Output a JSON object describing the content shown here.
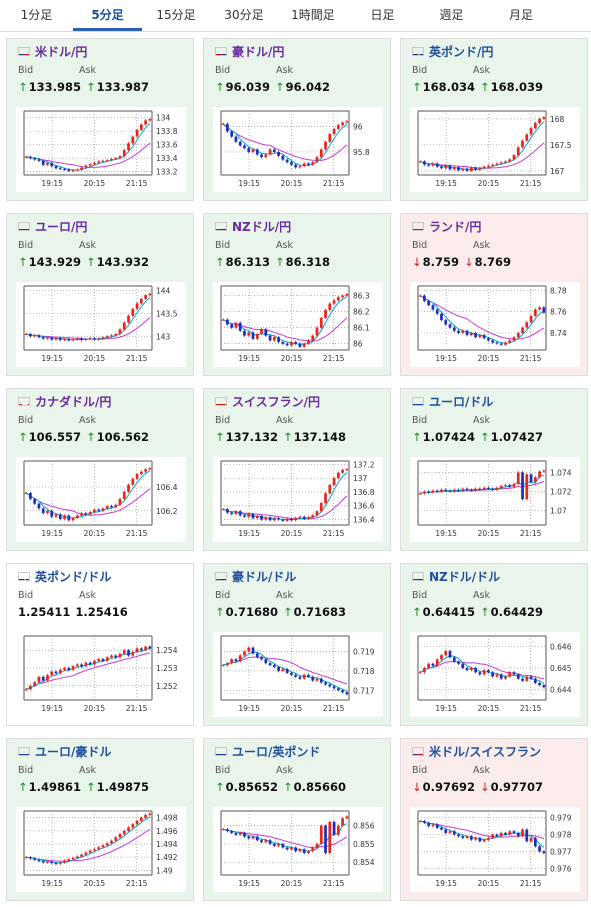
{
  "tabs": [
    {
      "label": "1分足",
      "active": false
    },
    {
      "label": "5分足",
      "active": true
    },
    {
      "label": "15分足",
      "active": false
    },
    {
      "label": "30分足",
      "active": false
    },
    {
      "label": "1時間足",
      "active": false
    },
    {
      "label": "日足",
      "active": false
    },
    {
      "label": "週足",
      "active": false
    },
    {
      "label": "月足",
      "active": false
    }
  ],
  "colors": {
    "up_candle": "#e8261d",
    "down_candle": "#1d2fb8",
    "ma_short": "#00a9c9",
    "ma_long": "#c43ad6",
    "grid": "#999999",
    "up_arrow": "#1f8a2a",
    "down_arrow": "#d0201d"
  },
  "labels": {
    "bid": "Bid",
    "ask": "Ask"
  },
  "cards": [
    {
      "pair": "米ドル/円",
      "flag": "us",
      "trend": "up",
      "bid": "133.985",
      "ask": "133.987",
      "arrows": [
        "up",
        "up"
      ],
      "chart_data": {
        "type": "candlestick",
        "x_ticks": [
          "19:15",
          "20:15",
          "21:15"
        ],
        "y_ticks": [
          "134",
          "133.8",
          "133.6",
          "133.4",
          "133.2"
        ],
        "ylim": [
          133.15,
          134.1
        ],
        "closes": [
          133.42,
          133.4,
          133.38,
          133.36,
          133.3,
          133.33,
          133.28,
          133.25,
          133.24,
          133.23,
          133.21,
          133.22,
          133.23,
          133.26,
          133.29,
          133.31,
          133.33,
          133.35,
          133.36,
          133.37,
          133.39,
          133.4,
          133.43,
          133.52,
          133.62,
          133.72,
          133.82,
          133.9,
          133.96,
          133.98
        ]
      }
    },
    {
      "pair": "豪ドル/円",
      "flag": "au",
      "trend": "up",
      "bid": "96.039",
      "ask": "96.042",
      "arrows": [
        "up",
        "up"
      ],
      "chart_data": {
        "type": "candlestick",
        "x_ticks": [
          "19:15",
          "20:15",
          "21:15"
        ],
        "y_ticks": [
          "96",
          "95.8"
        ],
        "ylim": [
          95.62,
          96.12
        ],
        "closes": [
          96.02,
          95.96,
          95.92,
          95.88,
          95.85,
          95.83,
          95.8,
          95.82,
          95.78,
          95.76,
          95.78,
          95.82,
          95.8,
          95.77,
          95.74,
          95.72,
          95.7,
          95.68,
          95.69,
          95.71,
          95.7,
          95.72,
          95.76,
          95.82,
          95.88,
          95.94,
          95.98,
          96.01,
          96.03,
          96.04
        ]
      }
    },
    {
      "pair": "英ポンド/円",
      "flag": "gb",
      "trend": "up",
      "bid": "168.034",
      "ask": "168.039",
      "arrows": [
        "up",
        "up"
      ],
      "chart_data": {
        "type": "candlestick",
        "x_ticks": [
          "19:15",
          "20:15",
          "21:15"
        ],
        "y_ticks": [
          "168",
          "167.5",
          "167"
        ],
        "ylim": [
          166.92,
          168.15
        ],
        "closes": [
          167.18,
          167.12,
          167.1,
          167.14,
          167.08,
          167.05,
          167.1,
          167.03,
          167.07,
          167.01,
          167.04,
          167.0,
          167.06,
          167.02,
          167.05,
          167.08,
          167.1,
          167.12,
          167.14,
          167.16,
          167.18,
          167.22,
          167.3,
          167.45,
          167.58,
          167.7,
          167.82,
          167.92,
          168.0,
          168.03
        ]
      }
    },
    {
      "pair": "ユーロ/円",
      "flag": "eu",
      "trend": "up",
      "bid": "143.929",
      "ask": "143.932",
      "arrows": [
        "up",
        "up"
      ],
      "chart_data": {
        "type": "candlestick",
        "x_ticks": [
          "19:15",
          "20:15",
          "21:15"
        ],
        "y_ticks": [
          "144",
          "143.5",
          "143"
        ],
        "ylim": [
          142.7,
          144.1
        ],
        "closes": [
          143.05,
          143.0,
          143.02,
          142.98,
          142.95,
          142.97,
          142.93,
          142.96,
          142.92,
          142.94,
          142.91,
          142.93,
          142.95,
          142.92,
          142.94,
          142.96,
          142.93,
          142.95,
          142.98,
          143.0,
          143.02,
          143.05,
          143.15,
          143.3,
          143.45,
          143.6,
          143.72,
          143.82,
          143.9,
          143.93
        ]
      }
    },
    {
      "pair": "NZドル/円",
      "flag": "nz",
      "trend": "up",
      "bid": "86.313",
      "ask": "86.318",
      "arrows": [
        "up",
        "up"
      ],
      "chart_data": {
        "type": "candlestick",
        "x_ticks": [
          "19:15",
          "20:15",
          "21:15"
        ],
        "y_ticks": [
          "86.3",
          "86.2",
          "86.1",
          "86"
        ],
        "ylim": [
          85.96,
          86.36
        ],
        "closes": [
          86.15,
          86.12,
          86.1,
          86.13,
          86.08,
          86.05,
          86.07,
          86.03,
          86.06,
          86.09,
          86.05,
          86.02,
          86.04,
          86.01,
          86.0,
          85.99,
          86.01,
          86.0,
          85.98,
          86.0,
          86.02,
          86.05,
          86.1,
          86.16,
          86.21,
          86.25,
          86.27,
          86.29,
          86.3,
          86.31
        ]
      }
    },
    {
      "pair": "ランド/円",
      "flag": "za",
      "trend": "down",
      "bid": "8.759",
      "ask": "8.769",
      "arrows": [
        "down",
        "down"
      ],
      "chart_data": {
        "type": "candlestick",
        "x_ticks": [
          "19:15",
          "20:15",
          "21:15"
        ],
        "y_ticks": [
          "8.78",
          "8.76",
          "8.74"
        ],
        "ylim": [
          8.724,
          8.784
        ],
        "closes": [
          8.775,
          8.77,
          8.766,
          8.762,
          8.758,
          8.752,
          8.748,
          8.745,
          8.742,
          8.74,
          8.742,
          8.738,
          8.74,
          8.736,
          8.738,
          8.735,
          8.733,
          8.731,
          8.73,
          8.729,
          8.731,
          8.733,
          8.736,
          8.74,
          8.745,
          8.75,
          8.756,
          8.762,
          8.764,
          8.759
        ]
      }
    },
    {
      "pair": "カナダドル/円",
      "flag": "ca",
      "trend": "up",
      "bid": "106.557",
      "ask": "106.562",
      "arrows": [
        "up",
        "up"
      ],
      "chart_data": {
        "type": "candlestick",
        "x_ticks": [
          "19:15",
          "20:15",
          "21:15"
        ],
        "y_ticks": [
          "106.4",
          "106.2"
        ],
        "ylim": [
          106.08,
          106.62
        ],
        "closes": [
          106.35,
          106.3,
          106.26,
          106.22,
          106.18,
          106.2,
          106.15,
          106.17,
          106.13,
          106.16,
          106.12,
          106.14,
          106.16,
          106.18,
          106.17,
          106.19,
          106.21,
          106.2,
          106.22,
          106.24,
          106.23,
          106.25,
          106.3,
          106.36,
          106.42,
          106.47,
          106.51,
          106.53,
          106.55,
          106.56
        ]
      }
    },
    {
      "pair": "スイスフラン/円",
      "flag": "ch",
      "trend": "up",
      "bid": "137.132",
      "ask": "137.148",
      "arrows": [
        "up",
        "up"
      ],
      "chart_data": {
        "type": "candlestick",
        "x_ticks": [
          "19:15",
          "20:15",
          "21:15"
        ],
        "y_ticks": [
          "137.2",
          "137",
          "136.8",
          "136.6",
          "136.4"
        ],
        "ylim": [
          136.32,
          137.25
        ],
        "closes": [
          136.55,
          136.5,
          136.48,
          136.52,
          136.46,
          136.44,
          136.48,
          136.42,
          136.45,
          136.4,
          136.43,
          136.39,
          136.42,
          136.4,
          136.38,
          136.41,
          136.39,
          136.42,
          136.44,
          136.41,
          136.43,
          136.46,
          136.52,
          136.64,
          136.78,
          136.9,
          137.0,
          137.08,
          137.12,
          137.13
        ]
      }
    },
    {
      "pair": "ユーロ/ドル",
      "flag": "eu-us",
      "trend": "up",
      "bid": "1.07424",
      "ask": "1.07427",
      "arrows": [
        "up",
        "up"
      ],
      "chart_data": {
        "type": "candlestick",
        "x_ticks": [
          "19:15",
          "20:15",
          "21:15"
        ],
        "y_ticks": [
          "1.074",
          "1.072",
          "1.07"
        ],
        "ylim": [
          1.0685,
          1.0752
        ],
        "closes": [
          1.0718,
          1.072,
          1.0719,
          1.0721,
          1.072,
          1.0722,
          1.0721,
          1.072,
          1.0722,
          1.0721,
          1.0723,
          1.0722,
          1.0721,
          1.0723,
          1.0722,
          1.0724,
          1.0723,
          1.0722,
          1.0724,
          1.0726,
          1.0727,
          1.0725,
          1.0728,
          1.074,
          1.0712,
          1.0738,
          1.073,
          1.0735,
          1.0741,
          1.0742
        ]
      }
    },
    {
      "pair": "英ポンド/ドル",
      "flag": "gb-us",
      "trend": "flat",
      "bid": "1.25411",
      "ask": "1.25416",
      "arrows": [
        "none",
        "none"
      ],
      "chart_data": {
        "type": "candlestick",
        "x_ticks": [
          "19:15",
          "20:15",
          "21:15"
        ],
        "y_ticks": [
          "1.254",
          "1.253",
          "1.252"
        ],
        "ylim": [
          1.2512,
          1.2548
        ],
        "closes": [
          1.2518,
          1.252,
          1.2522,
          1.2525,
          1.2523,
          1.2526,
          1.2528,
          1.2527,
          1.2529,
          1.253,
          1.2529,
          1.2531,
          1.2532,
          1.2531,
          1.2533,
          1.2532,
          1.2534,
          1.2535,
          1.2534,
          1.2536,
          1.2537,
          1.2536,
          1.2538,
          1.254,
          1.2537,
          1.2539,
          1.2541,
          1.254,
          1.2542,
          1.2541
        ]
      }
    },
    {
      "pair": "豪ドル/ドル",
      "flag": "au-us",
      "trend": "up",
      "bid": "0.71680",
      "ask": "0.71683",
      "arrows": [
        "up",
        "up"
      ],
      "chart_data": {
        "type": "candlestick",
        "x_ticks": [
          "19:15",
          "20:15",
          "21:15"
        ],
        "y_ticks": [
          "0.719",
          "0.718",
          "0.717"
        ],
        "ylim": [
          0.7165,
          0.7198
        ],
        "closes": [
          0.7183,
          0.7184,
          0.7186,
          0.7185,
          0.7188,
          0.719,
          0.7192,
          0.7189,
          0.7187,
          0.7186,
          0.7184,
          0.7183,
          0.7182,
          0.718,
          0.7181,
          0.7179,
          0.7178,
          0.7177,
          0.7176,
          0.7178,
          0.7177,
          0.7175,
          0.7176,
          0.7174,
          0.7173,
          0.7172,
          0.7171,
          0.717,
          0.7169,
          0.7168
        ]
      }
    },
    {
      "pair": "NZドル/ドル",
      "flag": "nz-us",
      "trend": "up",
      "bid": "0.64415",
      "ask": "0.64429",
      "arrows": [
        "up",
        "up"
      ],
      "chart_data": {
        "type": "candlestick",
        "x_ticks": [
          "19:15",
          "20:15",
          "21:15"
        ],
        "y_ticks": [
          "0.646",
          "0.645",
          "0.644"
        ],
        "ylim": [
          0.6435,
          0.6465
        ],
        "closes": [
          0.6448,
          0.645,
          0.6452,
          0.6451,
          0.6454,
          0.6456,
          0.6458,
          0.6455,
          0.6453,
          0.6452,
          0.645,
          0.6449,
          0.645,
          0.6448,
          0.6447,
          0.6449,
          0.6448,
          0.6446,
          0.6447,
          0.6445,
          0.6446,
          0.6448,
          0.6447,
          0.6445,
          0.6444,
          0.6446,
          0.6445,
          0.6443,
          0.6442,
          0.6441
        ]
      }
    },
    {
      "pair": "ユーロ/豪ドル",
      "flag": "eu-au",
      "trend": "up",
      "bid": "1.49861",
      "ask": "1.49875",
      "arrows": [
        "up",
        "up"
      ],
      "chart_data": {
        "type": "candlestick",
        "x_ticks": [
          "19:15",
          "20:15",
          "21:15"
        ],
        "y_ticks": [
          "1.498",
          "1.496",
          "1.494",
          "1.492",
          "1.49"
        ],
        "ylim": [
          1.4893,
          1.499
        ],
        "closes": [
          1.492,
          1.4918,
          1.4916,
          1.4914,
          1.4912,
          1.4913,
          1.4911,
          1.491,
          1.4912,
          1.4915,
          1.4917,
          1.4919,
          1.4921,
          1.4924,
          1.4927,
          1.493,
          1.4932,
          1.4935,
          1.4938,
          1.4941,
          1.4945,
          1.495,
          1.4955,
          1.496,
          1.4965,
          1.497,
          1.4975,
          1.498,
          1.4984,
          1.4986
        ]
      }
    },
    {
      "pair": "ユーロ/英ポンド",
      "flag": "eu-gb",
      "trend": "up",
      "bid": "0.85652",
      "ask": "0.85660",
      "arrows": [
        "up",
        "up"
      ],
      "chart_data": {
        "type": "candlestick",
        "x_ticks": [
          "19:15",
          "20:15",
          "21:15"
        ],
        "y_ticks": [
          "0.856",
          "0.855",
          "0.854"
        ],
        "ylim": [
          0.8533,
          0.8568
        ],
        "closes": [
          0.8558,
          0.8557,
          0.8556,
          0.8555,
          0.8556,
          0.8554,
          0.8553,
          0.8554,
          0.8552,
          0.8551,
          0.8552,
          0.855,
          0.8549,
          0.855,
          0.8548,
          0.8547,
          0.8548,
          0.8546,
          0.8547,
          0.8545,
          0.8546,
          0.8548,
          0.855,
          0.856,
          0.8545,
          0.8562,
          0.8555,
          0.856,
          0.8564,
          0.8565
        ]
      }
    },
    {
      "pair": "米ドル/スイスフラン",
      "flag": "us-ch",
      "trend": "down",
      "bid": "0.97692",
      "ask": "0.97707",
      "arrows": [
        "down",
        "down"
      ],
      "chart_data": {
        "type": "candlestick",
        "x_ticks": [
          "19:15",
          "20:15",
          "21:15"
        ],
        "y_ticks": [
          "0.979",
          "0.978",
          "0.977",
          "0.976"
        ],
        "ylim": [
          0.9756,
          0.9794
        ],
        "closes": [
          0.9788,
          0.9787,
          0.9785,
          0.9786,
          0.9784,
          0.9783,
          0.9781,
          0.9782,
          0.978,
          0.9779,
          0.9778,
          0.9779,
          0.9777,
          0.9778,
          0.9776,
          0.9777,
          0.9778,
          0.978,
          0.9779,
          0.9781,
          0.978,
          0.9782,
          0.9781,
          0.9779,
          0.9783,
          0.9776,
          0.9778,
          0.9773,
          0.977,
          0.9769
        ]
      }
    }
  ]
}
